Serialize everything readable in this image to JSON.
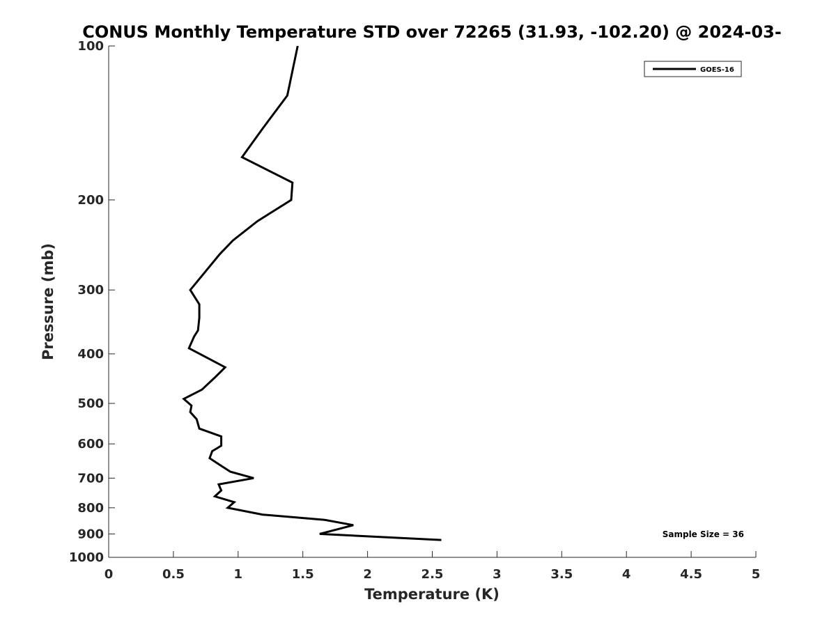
{
  "chart_data": {
    "type": "line",
    "title": "CONUS Monthly Temperature STD over 72265 (31.93, -102.20) @ 2024-03-",
    "xlabel": "Temperature (K)",
    "ylabel": "Pressure (mb)",
    "xlim": [
      0,
      5
    ],
    "ylim": [
      100,
      1000
    ],
    "yscale": "log",
    "y_reversed": true,
    "xticks": [
      0,
      0.5,
      1,
      1.5,
      2,
      2.5,
      3,
      3.5,
      4,
      4.5,
      5
    ],
    "xtick_labels": [
      "0",
      "0.5",
      "1",
      "1.5",
      "2",
      "2.5",
      "3",
      "3.5",
      "4",
      "4.5",
      "5"
    ],
    "yticks": [
      100,
      200,
      300,
      400,
      500,
      600,
      700,
      800,
      900,
      1000
    ],
    "ytick_labels": [
      "100",
      "200",
      "300",
      "400",
      "500",
      "600",
      "700",
      "800",
      "900",
      "1000"
    ],
    "legend": {
      "position": "top-right",
      "entries": [
        "GOES-16"
      ]
    },
    "annotation": "Sample Size = 36",
    "grid": false,
    "series": [
      {
        "name": "GOES-16",
        "color": "#000000",
        "points": [
          {
            "t": 1.46,
            "p": 100
          },
          {
            "t": 1.38,
            "p": 125
          },
          {
            "t": 1.19,
            "p": 145
          },
          {
            "t": 1.03,
            "p": 165
          },
          {
            "t": 1.42,
            "p": 185
          },
          {
            "t": 1.41,
            "p": 200
          },
          {
            "t": 1.15,
            "p": 220
          },
          {
            "t": 0.96,
            "p": 240
          },
          {
            "t": 0.86,
            "p": 255
          },
          {
            "t": 0.63,
            "p": 300
          },
          {
            "t": 0.7,
            "p": 320
          },
          {
            "t": 0.7,
            "p": 340
          },
          {
            "t": 0.69,
            "p": 360
          },
          {
            "t": 0.66,
            "p": 370
          },
          {
            "t": 0.62,
            "p": 390
          },
          {
            "t": 0.9,
            "p": 425
          },
          {
            "t": 0.82,
            "p": 445
          },
          {
            "t": 0.72,
            "p": 470
          },
          {
            "t": 0.58,
            "p": 490
          },
          {
            "t": 0.64,
            "p": 505
          },
          {
            "t": 0.63,
            "p": 520
          },
          {
            "t": 0.68,
            "p": 537
          },
          {
            "t": 0.7,
            "p": 560
          },
          {
            "t": 0.87,
            "p": 580
          },
          {
            "t": 0.87,
            "p": 605
          },
          {
            "t": 0.8,
            "p": 620
          },
          {
            "t": 0.78,
            "p": 640
          },
          {
            "t": 0.86,
            "p": 660
          },
          {
            "t": 0.94,
            "p": 680
          },
          {
            "t": 1.12,
            "p": 700
          },
          {
            "t": 0.85,
            "p": 720
          },
          {
            "t": 0.87,
            "p": 740
          },
          {
            "t": 0.82,
            "p": 760
          },
          {
            "t": 0.97,
            "p": 780
          },
          {
            "t": 0.92,
            "p": 800
          },
          {
            "t": 1.19,
            "p": 825
          },
          {
            "t": 1.67,
            "p": 845
          },
          {
            "t": 1.89,
            "p": 865
          },
          {
            "t": 1.63,
            "p": 900
          },
          {
            "t": 2.57,
            "p": 925
          }
        ]
      }
    ]
  }
}
